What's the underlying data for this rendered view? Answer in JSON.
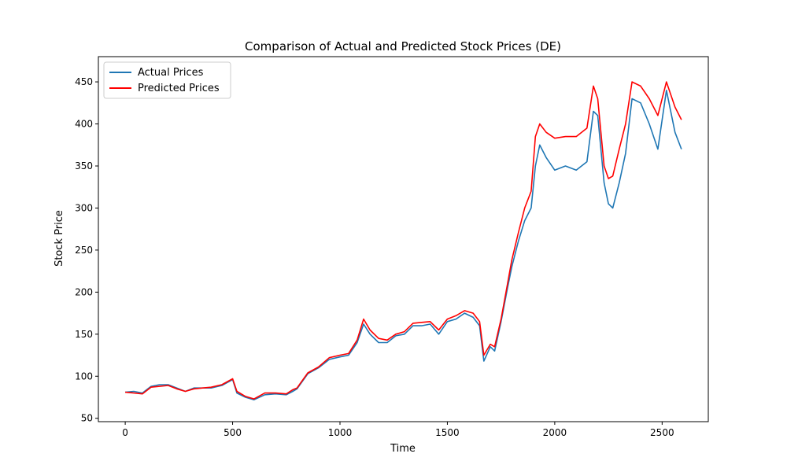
{
  "chart_data": {
    "type": "line",
    "title": "Comparison of Actual and Predicted Stock Prices (DE)",
    "xlabel": "Time",
    "ylabel": "Stock Price",
    "xlim": [
      -125,
      2715
    ],
    "ylim": [
      46,
      480
    ],
    "xticks": [
      0,
      500,
      1000,
      1500,
      2000,
      2500
    ],
    "yticks": [
      50,
      100,
      150,
      200,
      250,
      300,
      350,
      400,
      450
    ],
    "grid": false,
    "legend_placement": "upper-left",
    "series": [
      {
        "name": "Actual Prices",
        "color": "#1f77b4",
        "points": [
          [
            0,
            81
          ],
          [
            40,
            82
          ],
          [
            80,
            80
          ],
          [
            120,
            88
          ],
          [
            160,
            90
          ],
          [
            200,
            90
          ],
          [
            240,
            86
          ],
          [
            280,
            82
          ],
          [
            320,
            86
          ],
          [
            360,
            86
          ],
          [
            400,
            86
          ],
          [
            450,
            89
          ],
          [
            500,
            96
          ],
          [
            520,
            80
          ],
          [
            560,
            75
          ],
          [
            600,
            72
          ],
          [
            650,
            78
          ],
          [
            700,
            79
          ],
          [
            750,
            78
          ],
          [
            780,
            82
          ],
          [
            800,
            85
          ],
          [
            850,
            103
          ],
          [
            900,
            110
          ],
          [
            950,
            120
          ],
          [
            1000,
            123
          ],
          [
            1040,
            125
          ],
          [
            1080,
            140
          ],
          [
            1110,
            162
          ],
          [
            1140,
            150
          ],
          [
            1180,
            140
          ],
          [
            1220,
            140
          ],
          [
            1260,
            148
          ],
          [
            1300,
            150
          ],
          [
            1340,
            160
          ],
          [
            1380,
            160
          ],
          [
            1420,
            162
          ],
          [
            1460,
            150
          ],
          [
            1500,
            165
          ],
          [
            1540,
            168
          ],
          [
            1580,
            175
          ],
          [
            1620,
            170
          ],
          [
            1650,
            160
          ],
          [
            1670,
            118
          ],
          [
            1700,
            135
          ],
          [
            1720,
            130
          ],
          [
            1750,
            165
          ],
          [
            1780,
            205
          ],
          [
            1800,
            230
          ],
          [
            1830,
            260
          ],
          [
            1860,
            285
          ],
          [
            1890,
            300
          ],
          [
            1910,
            350
          ],
          [
            1930,
            375
          ],
          [
            1960,
            360
          ],
          [
            2000,
            345
          ],
          [
            2050,
            350
          ],
          [
            2100,
            345
          ],
          [
            2150,
            355
          ],
          [
            2180,
            415
          ],
          [
            2200,
            410
          ],
          [
            2230,
            330
          ],
          [
            2250,
            305
          ],
          [
            2270,
            300
          ],
          [
            2300,
            330
          ],
          [
            2330,
            365
          ],
          [
            2360,
            430
          ],
          [
            2400,
            425
          ],
          [
            2440,
            400
          ],
          [
            2480,
            370
          ],
          [
            2520,
            440
          ],
          [
            2560,
            390
          ],
          [
            2590,
            370
          ]
        ]
      },
      {
        "name": "Predicted Prices",
        "color": "#ff0000",
        "points": [
          [
            0,
            81
          ],
          [
            40,
            80
          ],
          [
            80,
            79
          ],
          [
            120,
            87
          ],
          [
            160,
            88
          ],
          [
            200,
            89
          ],
          [
            240,
            85
          ],
          [
            280,
            82
          ],
          [
            320,
            85
          ],
          [
            360,
            86
          ],
          [
            400,
            87
          ],
          [
            450,
            90
          ],
          [
            500,
            97
          ],
          [
            520,
            82
          ],
          [
            560,
            76
          ],
          [
            600,
            73
          ],
          [
            650,
            80
          ],
          [
            700,
            80
          ],
          [
            750,
            79
          ],
          [
            780,
            84
          ],
          [
            800,
            86
          ],
          [
            850,
            104
          ],
          [
            900,
            111
          ],
          [
            950,
            122
          ],
          [
            1000,
            125
          ],
          [
            1040,
            127
          ],
          [
            1080,
            143
          ],
          [
            1110,
            168
          ],
          [
            1140,
            155
          ],
          [
            1180,
            145
          ],
          [
            1220,
            143
          ],
          [
            1260,
            150
          ],
          [
            1300,
            153
          ],
          [
            1340,
            163
          ],
          [
            1380,
            164
          ],
          [
            1420,
            165
          ],
          [
            1460,
            155
          ],
          [
            1500,
            168
          ],
          [
            1540,
            172
          ],
          [
            1580,
            178
          ],
          [
            1620,
            175
          ],
          [
            1650,
            165
          ],
          [
            1670,
            125
          ],
          [
            1700,
            138
          ],
          [
            1720,
            135
          ],
          [
            1750,
            168
          ],
          [
            1780,
            210
          ],
          [
            1800,
            238
          ],
          [
            1830,
            270
          ],
          [
            1860,
            300
          ],
          [
            1890,
            320
          ],
          [
            1910,
            385
          ],
          [
            1930,
            400
          ],
          [
            1960,
            390
          ],
          [
            2000,
            383
          ],
          [
            2050,
            385
          ],
          [
            2100,
            385
          ],
          [
            2150,
            395
          ],
          [
            2180,
            445
          ],
          [
            2200,
            430
          ],
          [
            2230,
            350
          ],
          [
            2250,
            335
          ],
          [
            2270,
            338
          ],
          [
            2300,
            370
          ],
          [
            2330,
            400
          ],
          [
            2360,
            450
          ],
          [
            2400,
            445
          ],
          [
            2440,
            430
          ],
          [
            2480,
            410
          ],
          [
            2520,
            450
          ],
          [
            2560,
            420
          ],
          [
            2590,
            405
          ]
        ]
      }
    ]
  }
}
